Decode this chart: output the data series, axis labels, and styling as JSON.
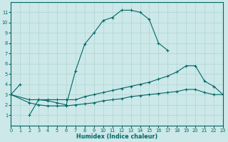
{
  "bg_color": "#cce8e8",
  "line_color": "#006666",
  "grid_color": "#b0d4d4",
  "xlabel": "Humidex (Indice chaleur)",
  "xlim": [
    0,
    23
  ],
  "ylim": [
    0,
    12
  ],
  "xticks": [
    0,
    1,
    2,
    3,
    4,
    5,
    6,
    7,
    8,
    9,
    10,
    11,
    12,
    13,
    14,
    15,
    16,
    17,
    18,
    19,
    20,
    21,
    22,
    23
  ],
  "yticks": [
    1,
    2,
    3,
    4,
    5,
    6,
    7,
    8,
    9,
    10,
    11
  ],
  "curve1_x": [
    0,
    1
  ],
  "curve1_y": [
    3,
    4
  ],
  "curve2_x": [
    2,
    3,
    4,
    5,
    6,
    7,
    8,
    9,
    10,
    11,
    12,
    13,
    14,
    15,
    16,
    17
  ],
  "curve2_y": [
    1,
    2.5,
    2.4,
    2.2,
    2.0,
    5.3,
    7.9,
    9.0,
    10.2,
    10.5,
    11.2,
    11.2,
    11.0,
    10.3,
    8.0,
    7.3
  ],
  "curve3_x": [
    0,
    2,
    3,
    4,
    5,
    6,
    7,
    8,
    9,
    10,
    11,
    12,
    13,
    14,
    15,
    16,
    17,
    18,
    19,
    20,
    21,
    22,
    23
  ],
  "curve3_y": [
    3,
    2.5,
    2.5,
    2.5,
    2.5,
    2.5,
    2.5,
    2.8,
    3.0,
    3.2,
    3.4,
    3.6,
    3.8,
    4.0,
    4.2,
    4.5,
    4.8,
    5.2,
    5.8,
    5.8,
    4.3,
    3.8,
    3.0
  ],
  "curve4_x": [
    0,
    2,
    3,
    4,
    5,
    6,
    7,
    8,
    9,
    10,
    11,
    12,
    13,
    14,
    15,
    16,
    17,
    18,
    19,
    20,
    21,
    22,
    23
  ],
  "curve4_y": [
    3,
    2.2,
    2.0,
    1.9,
    1.9,
    1.9,
    2.0,
    2.1,
    2.2,
    2.4,
    2.5,
    2.6,
    2.8,
    2.9,
    3.0,
    3.1,
    3.2,
    3.3,
    3.5,
    3.5,
    3.2,
    3.0,
    3.0
  ]
}
